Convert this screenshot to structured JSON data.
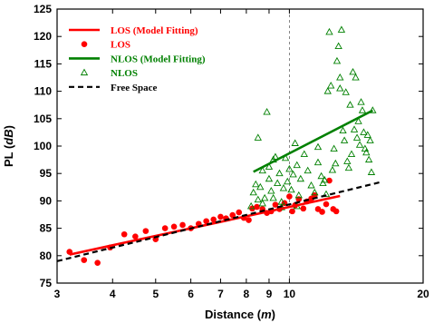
{
  "chart_data": {
    "type": "scatter",
    "title": "",
    "xlabel": {
      "prefix": "Distance (",
      "unit": "m",
      "suffix": ")"
    },
    "ylabel": {
      "prefix": "PL (",
      "unit": "dB",
      "suffix": ")"
    },
    "x_scale": "log",
    "xlim": [
      3,
      20
    ],
    "ylim": [
      75,
      125
    ],
    "x_ticks": [
      3,
      4,
      5,
      6,
      7,
      8,
      9,
      10,
      20
    ],
    "x_tick_labels": [
      "3",
      "4",
      "5",
      "6",
      "7",
      "8",
      "9",
      "10",
      "20"
    ],
    "y_ticks": [
      75,
      80,
      85,
      90,
      95,
      100,
      105,
      110,
      115,
      120,
      125
    ],
    "grid": {
      "vertical_dashed_at": 10
    },
    "legend_position": "top-left",
    "colors": {
      "los": "#ff0000",
      "nlos": "#008000",
      "free_space": "#000000"
    },
    "series": [
      {
        "name": "LOS (Model Fitting)",
        "kind": "line",
        "style": "solid",
        "color": "#ff0000",
        "x": [
          3.2,
          13.0
        ],
        "y": [
          80.2,
          90.9
        ]
      },
      {
        "name": "LOS",
        "kind": "scatter",
        "marker": "filled-circle",
        "color": "#ff0000",
        "x": [
          3.2,
          3.45,
          3.7,
          3.95,
          4.25,
          4.5,
          4.75,
          5.0,
          5.25,
          5.5,
          5.75,
          6.0,
          6.25,
          6.5,
          6.75,
          7.0,
          7.2,
          7.45,
          7.7,
          7.9,
          8.1,
          8.25,
          8.45,
          8.7,
          8.9,
          9.1,
          9.3,
          9.5,
          9.75,
          10.0,
          10.15,
          10.3,
          10.5,
          10.75,
          10.95,
          11.2,
          11.4,
          11.6,
          11.85,
          12.1,
          12.3,
          12.55,
          12.75
        ],
        "y": [
          80.7,
          79.2,
          78.7,
          81.5,
          83.9,
          83.5,
          84.5,
          83.0,
          85.0,
          85.3,
          85.6,
          85.0,
          85.8,
          86.3,
          86.6,
          87.1,
          86.8,
          87.4,
          87.9,
          86.9,
          86.5,
          88.6,
          88.9,
          88.5,
          87.8,
          88.1,
          89.3,
          88.5,
          89.6,
          90.8,
          88.1,
          89.2,
          90.3,
          88.6,
          89.9,
          90.4,
          91.0,
          88.5,
          88.0,
          89.4,
          93.7,
          88.5,
          88.1
        ]
      },
      {
        "name": "NLOS (Model Fitting)",
        "kind": "line",
        "style": "solid",
        "color": "#008000",
        "x": [
          8.3,
          15.4
        ],
        "y": [
          95.3,
          106.5
        ]
      },
      {
        "name": "NLOS",
        "kind": "scatter",
        "marker": "hollow-triangle",
        "color": "#008000",
        "x": [
          8.2,
          8.3,
          8.4,
          8.5,
          8.6,
          8.7,
          8.8,
          8.9,
          9.0,
          9.1,
          9.2,
          9.3,
          9.4,
          9.5,
          9.6,
          9.7,
          9.8,
          9.9,
          10.0,
          10.1,
          10.2,
          10.3,
          10.4,
          10.5,
          10.6,
          10.8,
          11.0,
          11.2,
          11.4,
          11.6,
          11.8,
          12.0,
          12.2,
          12.3,
          12.4,
          12.6,
          12.7,
          12.8,
          12.9,
          13.0,
          13.1,
          13.2,
          13.3,
          13.4,
          13.5,
          13.6,
          13.7,
          13.8,
          13.9,
          14.0,
          14.1,
          14.2,
          14.3,
          14.4,
          14.5,
          14.6,
          14.7,
          14.8,
          14.9,
          15.0,
          15.1,
          15.2,
          15.3,
          15.4,
          8.5,
          8.7,
          9.0,
          9.2,
          9.6,
          10.4,
          11.6,
          11.9,
          12.1,
          12.5,
          13.0
        ],
        "y": [
          89.0,
          91.5,
          93.0,
          101.5,
          92.5,
          95.5,
          90.5,
          106.2,
          94.0,
          91.8,
          97.5,
          98.0,
          93.2,
          95.0,
          89.8,
          92.3,
          97.8,
          93.5,
          95.8,
          92.0,
          94.8,
          100.5,
          96.5,
          91.0,
          94.0,
          98.5,
          95.5,
          92.8,
          91.5,
          97.0,
          94.5,
          93.8,
          110.0,
          120.8,
          111.0,
          99.5,
          96.8,
          115.5,
          118.2,
          112.5,
          121.2,
          102.8,
          101.0,
          109.8,
          97.2,
          96.0,
          107.5,
          98.5,
          113.5,
          103.0,
          112.5,
          101.5,
          104.5,
          100.2,
          108.0,
          106.5,
          102.5,
          99.5,
          98.8,
          102.0,
          97.5,
          101.0,
          95.2,
          106.5,
          90.2,
          89.5,
          96.2,
          90.5,
          88.8,
          89.0,
          99.8,
          93.2,
          91.2,
          95.6,
          110.5
        ]
      },
      {
        "name": "Free Space",
        "kind": "line",
        "style": "dashed",
        "color": "#000000",
        "x": [
          3.0,
          16.0
        ],
        "y": [
          79.0,
          93.4
        ]
      }
    ]
  }
}
